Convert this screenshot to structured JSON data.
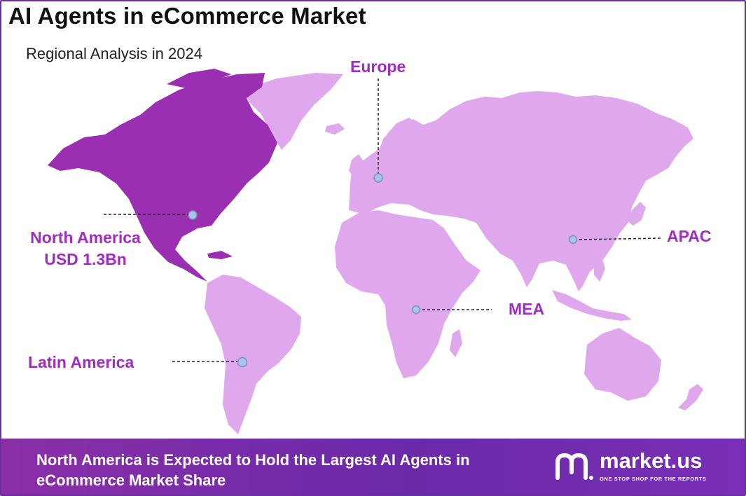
{
  "title": "AI Agents in eCommerce Market",
  "subtitle": "Regional Analysis in 2024",
  "colors": {
    "highlight_region": "#9a2fb2",
    "other_regions": "#e0a8ec",
    "label_text": "#a02dbf",
    "marker_fill": "#a9c4ec",
    "marker_stroke": "#7a8fbf",
    "footer_band": "#7a2fb0"
  },
  "regions": [
    {
      "id": "north-america",
      "name": "North America",
      "value_label": "USD 1.3Bn",
      "highlighted": true
    },
    {
      "id": "europe",
      "name": "Europe",
      "value_label": "",
      "highlighted": false
    },
    {
      "id": "apac",
      "name": "APAC",
      "value_label": "",
      "highlighted": false
    },
    {
      "id": "mea",
      "name": "MEA",
      "value_label": "",
      "highlighted": false
    },
    {
      "id": "latin-america",
      "name": "Latin America",
      "value_label": "",
      "highlighted": false
    }
  ],
  "footer": {
    "headline": "North America is Expected to Hold the Largest AI Agents in eCommerce Market Share"
  },
  "brand": {
    "icon": "market-us-logo-icon",
    "name": "market.us",
    "tagline": "ONE STOP SHOP FOR THE REPORTS"
  }
}
